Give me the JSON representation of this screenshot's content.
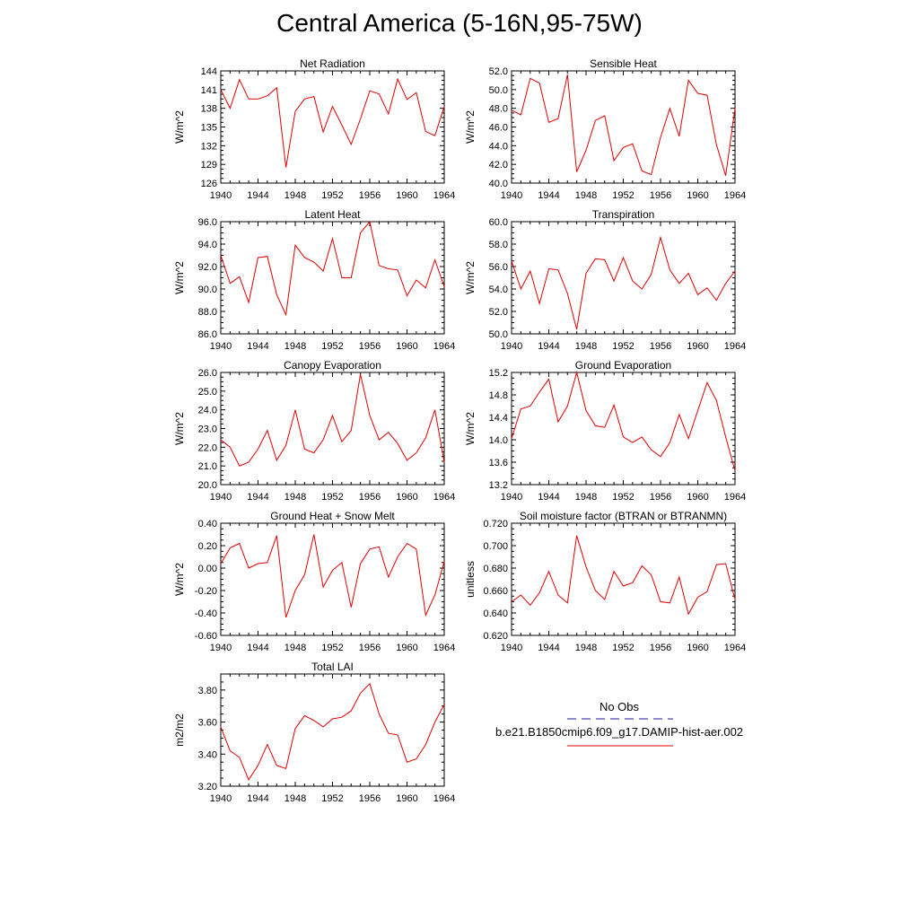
{
  "page": {
    "title": "Central America (5-16N,95-75W)"
  },
  "legend": {
    "obs_label": "No Obs",
    "obs_color": "#1a1aa6",
    "model_label": "b.e21.B1850cmip6.f09_g17.DAMIP-hist-aer.002",
    "model_color": "#e00000"
  },
  "chart_data": [
    {
      "type": "line",
      "title": "Net Radiation",
      "ylabel": "W/m^2",
      "x": [
        1940,
        1941,
        1942,
        1943,
        1944,
        1945,
        1946,
        1947,
        1948,
        1949,
        1950,
        1951,
        1952,
        1953,
        1954,
        1955,
        1956,
        1957,
        1958,
        1959,
        1960,
        1961,
        1962,
        1963,
        1964
      ],
      "xlim": [
        1940,
        1964
      ],
      "xticks": [
        "1940",
        "1944",
        "1948",
        "1952",
        "1956",
        "1960",
        "1964"
      ],
      "ylim": [
        126,
        144
      ],
      "yticks": [
        "126",
        "129",
        "132",
        "135",
        "138",
        "141",
        "144"
      ],
      "series": [
        {
          "values": [
            141.0,
            138.0,
            142.6,
            139.5,
            139.5,
            140.0,
            141.3,
            128.5,
            137.5,
            139.5,
            139.9,
            134.2,
            138.3,
            135.3,
            132.2,
            136.3,
            140.8,
            140.3,
            137.1,
            142.7,
            139.4,
            140.5,
            134.3,
            133.6,
            138.3
          ]
        }
      ]
    },
    {
      "type": "line",
      "title": "Sensible Heat",
      "ylabel": "W/m^2",
      "x": [
        1940,
        1941,
        1942,
        1943,
        1944,
        1945,
        1946,
        1947,
        1948,
        1949,
        1950,
        1951,
        1952,
        1953,
        1954,
        1955,
        1956,
        1957,
        1958,
        1959,
        1960,
        1961,
        1962,
        1963,
        1964
      ],
      "xlim": [
        1940,
        1964
      ],
      "xticks": [
        "1940",
        "1944",
        "1948",
        "1952",
        "1956",
        "1960",
        "1964"
      ],
      "ylim": [
        40,
        52
      ],
      "yticks": [
        "40.0",
        "42.0",
        "44.0",
        "46.0",
        "48.0",
        "50.0",
        "52.0"
      ],
      "series": [
        {
          "values": [
            47.8,
            47.3,
            51.2,
            50.7,
            46.5,
            46.9,
            51.6,
            41.2,
            43.5,
            46.7,
            47.2,
            42.4,
            43.8,
            44.2,
            41.3,
            40.9,
            44.9,
            48.0,
            45.0,
            51.0,
            49.6,
            49.4,
            44.1,
            40.8,
            48.0
          ]
        }
      ]
    },
    {
      "type": "line",
      "title": "Latent Heat",
      "ylabel": "W/m^2",
      "x": [
        1940,
        1941,
        1942,
        1943,
        1944,
        1945,
        1946,
        1947,
        1948,
        1949,
        1950,
        1951,
        1952,
        1953,
        1954,
        1955,
        1956,
        1957,
        1958,
        1959,
        1960,
        1961,
        1962,
        1963,
        1964
      ],
      "xlim": [
        1940,
        1964
      ],
      "xticks": [
        "1940",
        "1944",
        "1948",
        "1952",
        "1956",
        "1960",
        "1964"
      ],
      "ylim": [
        86,
        96
      ],
      "yticks": [
        "86.0",
        "88.0",
        "90.0",
        "92.0",
        "94.0",
        "96.0"
      ],
      "series": [
        {
          "values": [
            93.0,
            90.5,
            91.1,
            88.8,
            92.8,
            92.9,
            89.5,
            87.7,
            93.9,
            92.8,
            92.4,
            91.6,
            94.5,
            91.0,
            91.0,
            95.0,
            96.0,
            92.1,
            91.8,
            91.7,
            89.4,
            90.8,
            90.1,
            92.6,
            90.2
          ]
        }
      ]
    },
    {
      "type": "line",
      "title": "Transpiration",
      "ylabel": "W/m^2",
      "x": [
        1940,
        1941,
        1942,
        1943,
        1944,
        1945,
        1946,
        1947,
        1948,
        1949,
        1950,
        1951,
        1952,
        1953,
        1954,
        1955,
        1956,
        1957,
        1958,
        1959,
        1960,
        1961,
        1962,
        1963,
        1964
      ],
      "xlim": [
        1940,
        1964
      ],
      "xticks": [
        "1940",
        "1944",
        "1948",
        "1952",
        "1956",
        "1960",
        "1964"
      ],
      "ylim": [
        50,
        60
      ],
      "yticks": [
        "50.0",
        "52.0",
        "54.0",
        "56.0",
        "58.0",
        "60.0"
      ],
      "series": [
        {
          "values": [
            56.5,
            54.0,
            55.6,
            52.7,
            55.8,
            55.7,
            53.6,
            50.4,
            55.4,
            56.7,
            56.6,
            54.7,
            56.8,
            54.7,
            54.0,
            55.3,
            58.6,
            55.7,
            54.5,
            55.4,
            53.5,
            54.1,
            53.0,
            54.5,
            55.6
          ]
        }
      ]
    },
    {
      "type": "line",
      "title": "Canopy Evaporation",
      "ylabel": "W/m^2",
      "x": [
        1940,
        1941,
        1942,
        1943,
        1944,
        1945,
        1946,
        1947,
        1948,
        1949,
        1950,
        1951,
        1952,
        1953,
        1954,
        1955,
        1956,
        1957,
        1958,
        1959,
        1960,
        1961,
        1962,
        1963,
        1964
      ],
      "xlim": [
        1940,
        1964
      ],
      "xticks": [
        "1940",
        "1944",
        "1948",
        "1952",
        "1956",
        "1960",
        "1964"
      ],
      "ylim": [
        20,
        26
      ],
      "yticks": [
        "20.0",
        "21.0",
        "22.0",
        "23.0",
        "24.0",
        "25.0",
        "26.0"
      ],
      "series": [
        {
          "values": [
            22.4,
            22.0,
            21.0,
            21.2,
            21.9,
            22.9,
            21.3,
            22.1,
            24.0,
            21.9,
            21.7,
            22.4,
            23.7,
            22.3,
            22.9,
            25.9,
            23.7,
            22.4,
            22.8,
            22.2,
            21.3,
            21.7,
            22.5,
            24.0,
            21.2
          ]
        }
      ]
    },
    {
      "type": "line",
      "title": "Ground Evaporation",
      "ylabel": "W/m^2",
      "x": [
        1940,
        1941,
        1942,
        1943,
        1944,
        1945,
        1946,
        1947,
        1948,
        1949,
        1950,
        1951,
        1952,
        1953,
        1954,
        1955,
        1956,
        1957,
        1958,
        1959,
        1960,
        1961,
        1962,
        1963,
        1964
      ],
      "xlim": [
        1940,
        1964
      ],
      "xticks": [
        "1940",
        "1944",
        "1948",
        "1952",
        "1956",
        "1960",
        "1964"
      ],
      "ylim": [
        13.2,
        15.2
      ],
      "yticks": [
        "13.2",
        "13.6",
        "14.0",
        "14.4",
        "14.8",
        "15.2"
      ],
      "series": [
        {
          "values": [
            14.02,
            14.55,
            14.6,
            14.85,
            15.08,
            14.32,
            14.6,
            15.2,
            14.52,
            14.25,
            14.22,
            14.62,
            14.05,
            13.95,
            14.05,
            13.82,
            13.7,
            13.95,
            14.45,
            14.02,
            14.52,
            15.02,
            14.7,
            14.05,
            13.45
          ]
        }
      ]
    },
    {
      "type": "line",
      "title": "Ground Heat + Snow Melt",
      "ylabel": "W/m^2",
      "x": [
        1940,
        1941,
        1942,
        1943,
        1944,
        1945,
        1946,
        1947,
        1948,
        1949,
        1950,
        1951,
        1952,
        1953,
        1954,
        1955,
        1956,
        1957,
        1958,
        1959,
        1960,
        1961,
        1962,
        1963,
        1964
      ],
      "xlim": [
        1940,
        1964
      ],
      "xticks": [
        "1940",
        "1944",
        "1948",
        "1952",
        "1956",
        "1960",
        "1964"
      ],
      "ylim": [
        -0.6,
        0.4
      ],
      "yticks": [
        "-0.60",
        "-0.40",
        "-0.20",
        "0.00",
        "0.20",
        "0.40"
      ],
      "series": [
        {
          "values": [
            0.04,
            0.18,
            0.22,
            0.0,
            0.04,
            0.05,
            0.29,
            -0.44,
            -0.2,
            -0.06,
            0.3,
            -0.17,
            -0.02,
            0.05,
            -0.35,
            0.04,
            0.17,
            0.19,
            -0.08,
            0.1,
            0.22,
            0.17,
            -0.42,
            -0.24,
            0.06
          ]
        }
      ]
    },
    {
      "type": "line",
      "title": "Soil moisture factor (BTRAN or BTRANMN)",
      "ylabel": "unitless",
      "x": [
        1940,
        1941,
        1942,
        1943,
        1944,
        1945,
        1946,
        1947,
        1948,
        1949,
        1950,
        1951,
        1952,
        1953,
        1954,
        1955,
        1956,
        1957,
        1958,
        1959,
        1960,
        1961,
        1962,
        1963,
        1964
      ],
      "xlim": [
        1940,
        1964
      ],
      "xticks": [
        "1940",
        "1944",
        "1948",
        "1952",
        "1956",
        "1960",
        "1964"
      ],
      "ylim": [
        0.62,
        0.72
      ],
      "yticks": [
        "0.620",
        "0.640",
        "0.660",
        "0.680",
        "0.700",
        "0.720"
      ],
      "series": [
        {
          "values": [
            0.65,
            0.656,
            0.647,
            0.658,
            0.677,
            0.656,
            0.649,
            0.709,
            0.681,
            0.66,
            0.652,
            0.677,
            0.664,
            0.667,
            0.682,
            0.674,
            0.65,
            0.649,
            0.672,
            0.639,
            0.654,
            0.659,
            0.683,
            0.684,
            0.652
          ]
        }
      ]
    },
    {
      "type": "line",
      "title": "Total LAI",
      "ylabel": "m2/m2",
      "x": [
        1940,
        1941,
        1942,
        1943,
        1944,
        1945,
        1946,
        1947,
        1948,
        1949,
        1950,
        1951,
        1952,
        1953,
        1954,
        1955,
        1956,
        1957,
        1958,
        1959,
        1960,
        1961,
        1962,
        1963,
        1964
      ],
      "xlim": [
        1940,
        1964
      ],
      "xticks": [
        "1940",
        "1944",
        "1948",
        "1952",
        "1956",
        "1960",
        "1964"
      ],
      "ylim": [
        3.2,
        3.9
      ],
      "yticks": [
        "3.20",
        "3.40",
        "3.60",
        "3.80"
      ],
      "series": [
        {
          "values": [
            3.57,
            3.42,
            3.38,
            3.24,
            3.33,
            3.46,
            3.33,
            3.31,
            3.56,
            3.64,
            3.61,
            3.57,
            3.62,
            3.63,
            3.67,
            3.78,
            3.84,
            3.65,
            3.53,
            3.52,
            3.35,
            3.37,
            3.46,
            3.6,
            3.71
          ]
        }
      ]
    }
  ]
}
